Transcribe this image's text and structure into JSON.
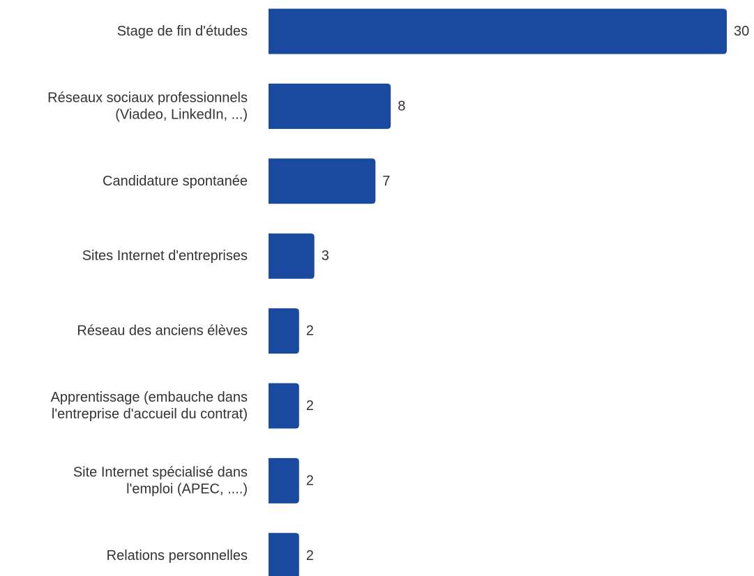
{
  "chart_data": {
    "type": "bar",
    "orientation": "horizontal",
    "categories": [
      [
        "Stage de fin d'études"
      ],
      [
        "Réseaux sociaux professionnels",
        "(Viadeo, LinkedIn, ...)"
      ],
      [
        "Candidature spontanée"
      ],
      [
        "Sites Internet d'entreprises"
      ],
      [
        "Réseau des anciens élèves"
      ],
      [
        "Apprentissage (embauche dans",
        "l'entreprise d'accueil du contrat)"
      ],
      [
        "Site Internet spécialisé dans",
        "l'emploi (APEC, ....)"
      ],
      [
        "Relations personnelles"
      ]
    ],
    "values": [
      30,
      8,
      7,
      3,
      2,
      2,
      2,
      2
    ],
    "xlim": [
      0,
      30
    ],
    "grid": false,
    "legend": "none",
    "bar_color": "#1a4aa0",
    "text_color": "#333333"
  }
}
